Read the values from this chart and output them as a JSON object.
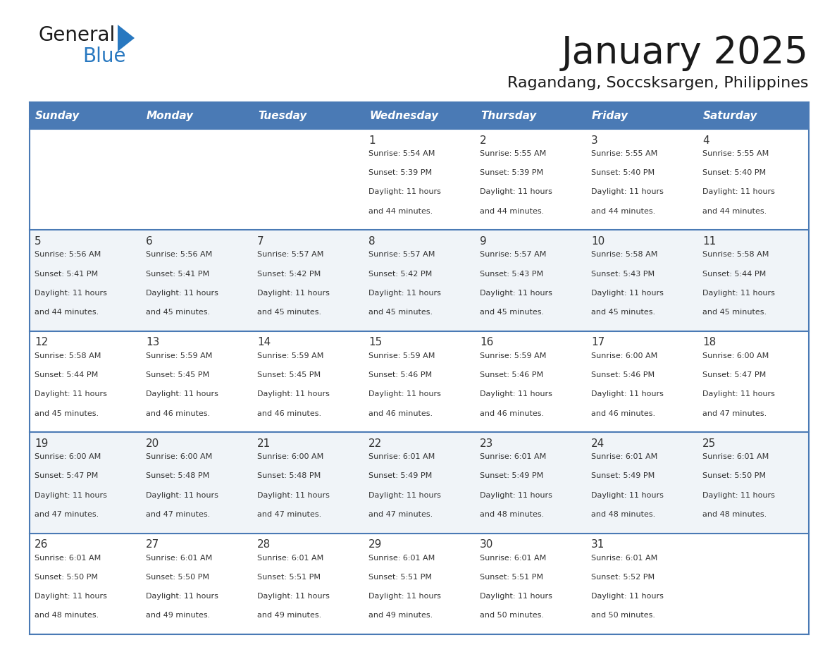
{
  "title": "January 2025",
  "subtitle": "Ragandang, Soccsksargen, Philippines",
  "days_of_week": [
    "Sunday",
    "Monday",
    "Tuesday",
    "Wednesday",
    "Thursday",
    "Friday",
    "Saturday"
  ],
  "header_bg": "#4a7ab5",
  "header_text_color": "#FFFFFF",
  "cell_bg_even": "#FFFFFF",
  "cell_bg_odd": "#f0f4f8",
  "row_line_color": "#4a7ab5",
  "text_color": "#333333",
  "days": [
    {
      "day": 1,
      "col": 3,
      "row": 0,
      "sunrise": "5:54 AM",
      "sunset": "5:39 PM",
      "daylight_hours": 11,
      "daylight_minutes": 44
    },
    {
      "day": 2,
      "col": 4,
      "row": 0,
      "sunrise": "5:55 AM",
      "sunset": "5:39 PM",
      "daylight_hours": 11,
      "daylight_minutes": 44
    },
    {
      "day": 3,
      "col": 5,
      "row": 0,
      "sunrise": "5:55 AM",
      "sunset": "5:40 PM",
      "daylight_hours": 11,
      "daylight_minutes": 44
    },
    {
      "day": 4,
      "col": 6,
      "row": 0,
      "sunrise": "5:55 AM",
      "sunset": "5:40 PM",
      "daylight_hours": 11,
      "daylight_minutes": 44
    },
    {
      "day": 5,
      "col": 0,
      "row": 1,
      "sunrise": "5:56 AM",
      "sunset": "5:41 PM",
      "daylight_hours": 11,
      "daylight_minutes": 44
    },
    {
      "day": 6,
      "col": 1,
      "row": 1,
      "sunrise": "5:56 AM",
      "sunset": "5:41 PM",
      "daylight_hours": 11,
      "daylight_minutes": 45
    },
    {
      "day": 7,
      "col": 2,
      "row": 1,
      "sunrise": "5:57 AM",
      "sunset": "5:42 PM",
      "daylight_hours": 11,
      "daylight_minutes": 45
    },
    {
      "day": 8,
      "col": 3,
      "row": 1,
      "sunrise": "5:57 AM",
      "sunset": "5:42 PM",
      "daylight_hours": 11,
      "daylight_minutes": 45
    },
    {
      "day": 9,
      "col": 4,
      "row": 1,
      "sunrise": "5:57 AM",
      "sunset": "5:43 PM",
      "daylight_hours": 11,
      "daylight_minutes": 45
    },
    {
      "day": 10,
      "col": 5,
      "row": 1,
      "sunrise": "5:58 AM",
      "sunset": "5:43 PM",
      "daylight_hours": 11,
      "daylight_minutes": 45
    },
    {
      "day": 11,
      "col": 6,
      "row": 1,
      "sunrise": "5:58 AM",
      "sunset": "5:44 PM",
      "daylight_hours": 11,
      "daylight_minutes": 45
    },
    {
      "day": 12,
      "col": 0,
      "row": 2,
      "sunrise": "5:58 AM",
      "sunset": "5:44 PM",
      "daylight_hours": 11,
      "daylight_minutes": 45
    },
    {
      "day": 13,
      "col": 1,
      "row": 2,
      "sunrise": "5:59 AM",
      "sunset": "5:45 PM",
      "daylight_hours": 11,
      "daylight_minutes": 46
    },
    {
      "day": 14,
      "col": 2,
      "row": 2,
      "sunrise": "5:59 AM",
      "sunset": "5:45 PM",
      "daylight_hours": 11,
      "daylight_minutes": 46
    },
    {
      "day": 15,
      "col": 3,
      "row": 2,
      "sunrise": "5:59 AM",
      "sunset": "5:46 PM",
      "daylight_hours": 11,
      "daylight_minutes": 46
    },
    {
      "day": 16,
      "col": 4,
      "row": 2,
      "sunrise": "5:59 AM",
      "sunset": "5:46 PM",
      "daylight_hours": 11,
      "daylight_minutes": 46
    },
    {
      "day": 17,
      "col": 5,
      "row": 2,
      "sunrise": "6:00 AM",
      "sunset": "5:46 PM",
      "daylight_hours": 11,
      "daylight_minutes": 46
    },
    {
      "day": 18,
      "col": 6,
      "row": 2,
      "sunrise": "6:00 AM",
      "sunset": "5:47 PM",
      "daylight_hours": 11,
      "daylight_minutes": 47
    },
    {
      "day": 19,
      "col": 0,
      "row": 3,
      "sunrise": "6:00 AM",
      "sunset": "5:47 PM",
      "daylight_hours": 11,
      "daylight_minutes": 47
    },
    {
      "day": 20,
      "col": 1,
      "row": 3,
      "sunrise": "6:00 AM",
      "sunset": "5:48 PM",
      "daylight_hours": 11,
      "daylight_minutes": 47
    },
    {
      "day": 21,
      "col": 2,
      "row": 3,
      "sunrise": "6:00 AM",
      "sunset": "5:48 PM",
      "daylight_hours": 11,
      "daylight_minutes": 47
    },
    {
      "day": 22,
      "col": 3,
      "row": 3,
      "sunrise": "6:01 AM",
      "sunset": "5:49 PM",
      "daylight_hours": 11,
      "daylight_minutes": 47
    },
    {
      "day": 23,
      "col": 4,
      "row": 3,
      "sunrise": "6:01 AM",
      "sunset": "5:49 PM",
      "daylight_hours": 11,
      "daylight_minutes": 48
    },
    {
      "day": 24,
      "col": 5,
      "row": 3,
      "sunrise": "6:01 AM",
      "sunset": "5:49 PM",
      "daylight_hours": 11,
      "daylight_minutes": 48
    },
    {
      "day": 25,
      "col": 6,
      "row": 3,
      "sunrise": "6:01 AM",
      "sunset": "5:50 PM",
      "daylight_hours": 11,
      "daylight_minutes": 48
    },
    {
      "day": 26,
      "col": 0,
      "row": 4,
      "sunrise": "6:01 AM",
      "sunset": "5:50 PM",
      "daylight_hours": 11,
      "daylight_minutes": 48
    },
    {
      "day": 27,
      "col": 1,
      "row": 4,
      "sunrise": "6:01 AM",
      "sunset": "5:50 PM",
      "daylight_hours": 11,
      "daylight_minutes": 49
    },
    {
      "day": 28,
      "col": 2,
      "row": 4,
      "sunrise": "6:01 AM",
      "sunset": "5:51 PM",
      "daylight_hours": 11,
      "daylight_minutes": 49
    },
    {
      "day": 29,
      "col": 3,
      "row": 4,
      "sunrise": "6:01 AM",
      "sunset": "5:51 PM",
      "daylight_hours": 11,
      "daylight_minutes": 49
    },
    {
      "day": 30,
      "col": 4,
      "row": 4,
      "sunrise": "6:01 AM",
      "sunset": "5:51 PM",
      "daylight_hours": 11,
      "daylight_minutes": 50
    },
    {
      "day": 31,
      "col": 5,
      "row": 4,
      "sunrise": "6:01 AM",
      "sunset": "5:52 PM",
      "daylight_hours": 11,
      "daylight_minutes": 50
    }
  ],
  "logo_general_color": "#1a1a1a",
  "logo_blue_color": "#2878C0",
  "logo_triangle_color": "#2878C0"
}
